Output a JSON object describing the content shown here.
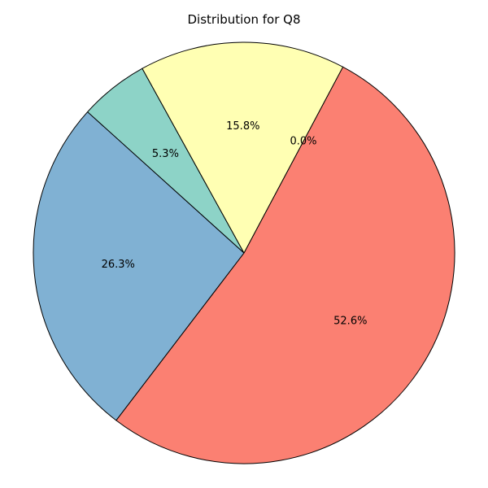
{
  "chart_data": {
    "type": "pie",
    "title": "Distribution for Q8",
    "slices": [
      {
        "label": "52.6%",
        "value": 52.6,
        "color": "#FB8072"
      },
      {
        "label": "26.3%",
        "value": 26.3,
        "color": "#80B1D3"
      },
      {
        "label": "5.3%",
        "value": 5.3,
        "color": "#8DD3C7"
      },
      {
        "label": "15.8%",
        "value": 15.8,
        "color": "#FFFFB3"
      },
      {
        "label": "0.0%",
        "value": 0.0,
        "color": "#BEBADA"
      }
    ],
    "start_angle_deg": 62,
    "direction": "clockwise"
  }
}
